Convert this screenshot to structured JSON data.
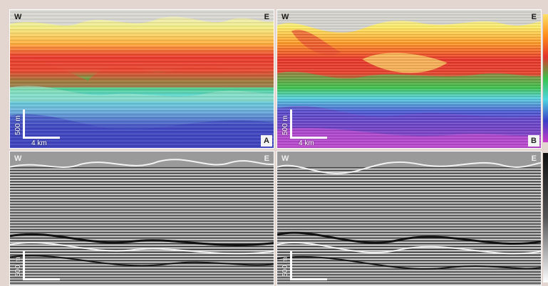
{
  "panels": [
    {
      "id": "A",
      "west": "W",
      "east": "E",
      "tag": "A",
      "scale_v": "500 m",
      "scale_h": "4 km"
    },
    {
      "id": "B",
      "west": "W",
      "east": "E",
      "tag": "B",
      "scale_v": "500 m",
      "scale_h": "4 km"
    },
    {
      "id": "C",
      "west": "W",
      "east": "E",
      "scale_v": "500 m"
    },
    {
      "id": "D",
      "west": "W",
      "east": "E",
      "scale_v": "500 m"
    }
  ],
  "colors": {
    "background": "#e3d6d1",
    "velocity_ramp": [
      "#ffff66",
      "#ff9a2a",
      "#e83a2a",
      "#39c24a",
      "#4fd6e0",
      "#3b3fc8",
      "#c83cc8"
    ]
  }
}
